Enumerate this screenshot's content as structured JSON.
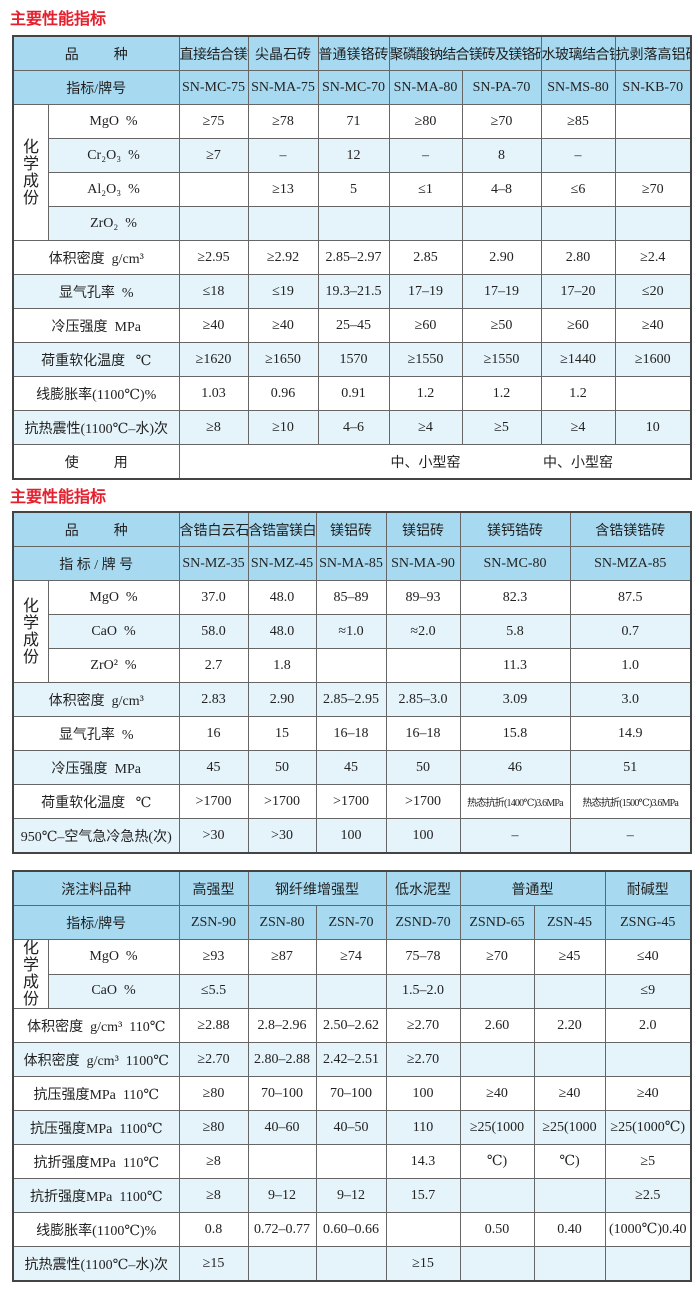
{
  "titles": [
    "主要性能指标",
    "主要性能指标"
  ],
  "colors": {
    "title": "#e5202e",
    "header_bg": "#a7daf1",
    "stripe_bg": "#e5f4fb",
    "border": "#444444"
  },
  "tables": [
    {
      "header": {
        "label": "品          种",
        "cells": [
          {
            "text": "直接结合镁铬砖"
          },
          {
            "text": "尖晶石砖"
          },
          {
            "text": "普通镁铬砖"
          },
          {
            "text": "聚磷酸钠结合镁砖及镁铬砖",
            "span": 2
          },
          {
            "text": "水玻璃结合镁砖"
          },
          {
            "text": "抗剥落高铝砖"
          }
        ]
      },
      "grade": {
        "label": "指标/牌号",
        "cells": [
          "SN-MC-75",
          "SN-MA-75",
          "SN-MC-70",
          "SN-MA-80",
          "SN-PA-70",
          "SN-MS-80",
          "SN-KB-70"
        ]
      },
      "chem": {
        "label": "化学成份",
        "rows": [
          {
            "label": "MgO  %",
            "cells": [
              "≥75",
              "≥78",
              "71",
              "≥80",
              "≥70",
              "≥85",
              ""
            ]
          },
          {
            "label": "Cr₂O₃  %",
            "cells": [
              "≥7",
              "–",
              "12",
              "–",
              "8",
              "–",
              ""
            ]
          },
          {
            "label": "Al₂O₃  %",
            "cells": [
              "",
              "≥13",
              "5",
              "≤1",
              "4–8",
              "≤6",
              "≥70"
            ]
          },
          {
            "label": "ZrO₂  %",
            "cells": [
              "",
              "",
              "",
              "",
              "",
              "",
              ""
            ]
          }
        ]
      },
      "rows": [
        {
          "label": "体积密度  g/cm³",
          "cells": [
            "≥2.95",
            "≥2.92",
            "2.85–2.97",
            "2.85",
            "2.90",
            "2.80",
            "≥2.4"
          ]
        },
        {
          "label": "显气孔率  %",
          "cells": [
            "≤18",
            "≤19",
            "19.3–21.5",
            "17–19",
            "17–19",
            "17–20",
            "≤20"
          ]
        },
        {
          "label": "冷压强度  MPa",
          "cells": [
            "≥40",
            "≥40",
            "25–45",
            "≥60",
            "≥50",
            "≥60",
            "≥40"
          ]
        },
        {
          "label": "荷重软化温度   ℃",
          "cells": [
            "≥1620",
            "≥1650",
            "1570",
            "≥1550",
            "≥1550",
            "≥1440",
            "≥1600"
          ]
        },
        {
          "label": "线膨胀率(1100℃)%",
          "cells": [
            "1.03",
            "0.96",
            "0.91",
            "1.2",
            "1.2",
            "1.2",
            ""
          ]
        },
        {
          "label": "抗热震性(1100℃–水)次",
          "cells": [
            "≥8",
            "≥10",
            "4–6",
            "≥4",
            "≥5",
            "≥4",
            "10"
          ]
        }
      ],
      "usage": {
        "label": "使          用",
        "cells": [
          "",
          "",
          "",
          "中、小型窑",
          "",
          "中、小型窑",
          ""
        ]
      }
    },
    {
      "header": {
        "label": "品          种",
        "cells": [
          {
            "text": "含锆白云石砖"
          },
          {
            "text": "含锆富镁白云石砖"
          },
          {
            "text": "镁铝砖"
          },
          {
            "text": "镁铝砖"
          },
          {
            "text": "镁钙锆砖"
          },
          {
            "text": "含锆镁锆砖"
          }
        ]
      },
      "grade": {
        "label": "指 标 / 牌 号",
        "cells": [
          "SN-MZ-35",
          "SN-MZ-45",
          "SN-MA-85",
          "SN-MA-90",
          "SN-MC-80",
          "SN-MZA-85"
        ]
      },
      "chem": {
        "label": "化学成份",
        "rows": [
          {
            "label": "MgO  %",
            "cells": [
              "37.0",
              "48.0",
              "85–89",
              "89–93",
              "82.3",
              "87.5"
            ]
          },
          {
            "label": "CaO  %",
            "cells": [
              "58.0",
              "48.0",
              "≈1.0",
              "≈2.0",
              "5.8",
              "0.7"
            ]
          },
          {
            "label": "ZrO²  %",
            "cells": [
              "2.7",
              "1.8",
              "",
              "",
              "11.3",
              "1.0"
            ]
          }
        ]
      },
      "rows": [
        {
          "label": "体积密度  g/cm³",
          "cells": [
            "2.83",
            "2.90",
            "2.85–2.95",
            "2.85–3.0",
            "3.09",
            "3.0"
          ]
        },
        {
          "label": "显气孔率  %",
          "cells": [
            "16",
            "15",
            "16–18",
            "16–18",
            "15.8",
            "14.9"
          ]
        },
        {
          "label": "冷压强度  MPa",
          "cells": [
            "45",
            "50",
            "45",
            "50",
            "46",
            "51"
          ]
        },
        {
          "label": "荷重软化温度   ℃",
          "cells": [
            ">1700",
            ">1700",
            ">1700",
            ">1700",
            "热态抗折(1400℃)3.6MPa",
            "热态抗折(1500℃)3.6MPa"
          ]
        },
        {
          "label": "950℃–空气急冷急热(次)",
          "cells": [
            ">30",
            ">30",
            "100",
            "100",
            "–",
            "–"
          ]
        }
      ]
    },
    {
      "header": {
        "label": "浇注料品种",
        "cells": [
          {
            "text": "高强型"
          },
          {
            "text": "钢纤维增强型",
            "span": 2
          },
          {
            "text": "低水泥型"
          },
          {
            "text": "普通型",
            "span": 2
          },
          {
            "text": "耐碱型"
          }
        ]
      },
      "grade": {
        "label": "指标/牌号",
        "cells": [
          "ZSN-90",
          "ZSN-80",
          "ZSN-70",
          "ZSND-70",
          "ZSND-65",
          "ZSN-45",
          "ZSNG-45"
        ]
      },
      "chem": {
        "label": "化学成份",
        "rows": [
          {
            "label": "MgO  %",
            "cells": [
              "≥93",
              "≥87",
              "≥74",
              "75–78",
              "≥70",
              "≥45",
              "≤40"
            ]
          },
          {
            "label": "CaO  %",
            "cells": [
              "≤5.5",
              "",
              "",
              "1.5–2.0",
              "",
              "",
              "≤9"
            ]
          }
        ]
      },
      "rows": [
        {
          "label": "体积密度  g/cm³  110℃",
          "cells": [
            "≥2.88",
            "2.8–2.96",
            "2.50–2.62",
            "≥2.70",
            "2.60",
            "2.20",
            "2.0"
          ]
        },
        {
          "label": "体积密度  g/cm³  1100℃",
          "cells": [
            "≥2.70",
            "2.80–2.88",
            "2.42–2.51",
            "≥2.70",
            "",
            "",
            ""
          ]
        },
        {
          "label": "抗压强度MPa  110℃",
          "cells": [
            "≥80",
            "70–100",
            "70–100",
            "100",
            "≥40",
            "≥40",
            "≥40"
          ]
        },
        {
          "label": "抗压强度MPa  1100℃",
          "cells": [
            "≥80",
            "40–60",
            "40–50",
            "110",
            "≥25(1000",
            "≥25(1000",
            "≥25(1000℃)"
          ]
        },
        {
          "label": "抗折强度MPa  110℃",
          "cells": [
            "≥8",
            "",
            "",
            "14.3",
            "℃)",
            "℃)",
            "≥5"
          ]
        },
        {
          "label": "抗折强度MPa  1100℃",
          "cells": [
            "≥8",
            "9–12",
            "9–12",
            "15.7",
            "",
            "",
            "≥2.5"
          ]
        },
        {
          "label": "线膨胀率(1100℃)%",
          "cells": [
            "0.8",
            "0.72–0.77",
            "0.60–0.66",
            "",
            "0.50",
            "0.40",
            "(1000℃)0.40"
          ]
        },
        {
          "label": "抗热震性(1100℃–水)次",
          "cells": [
            "≥15",
            "",
            "",
            "≥15",
            "",
            "",
            ""
          ]
        }
      ]
    }
  ]
}
